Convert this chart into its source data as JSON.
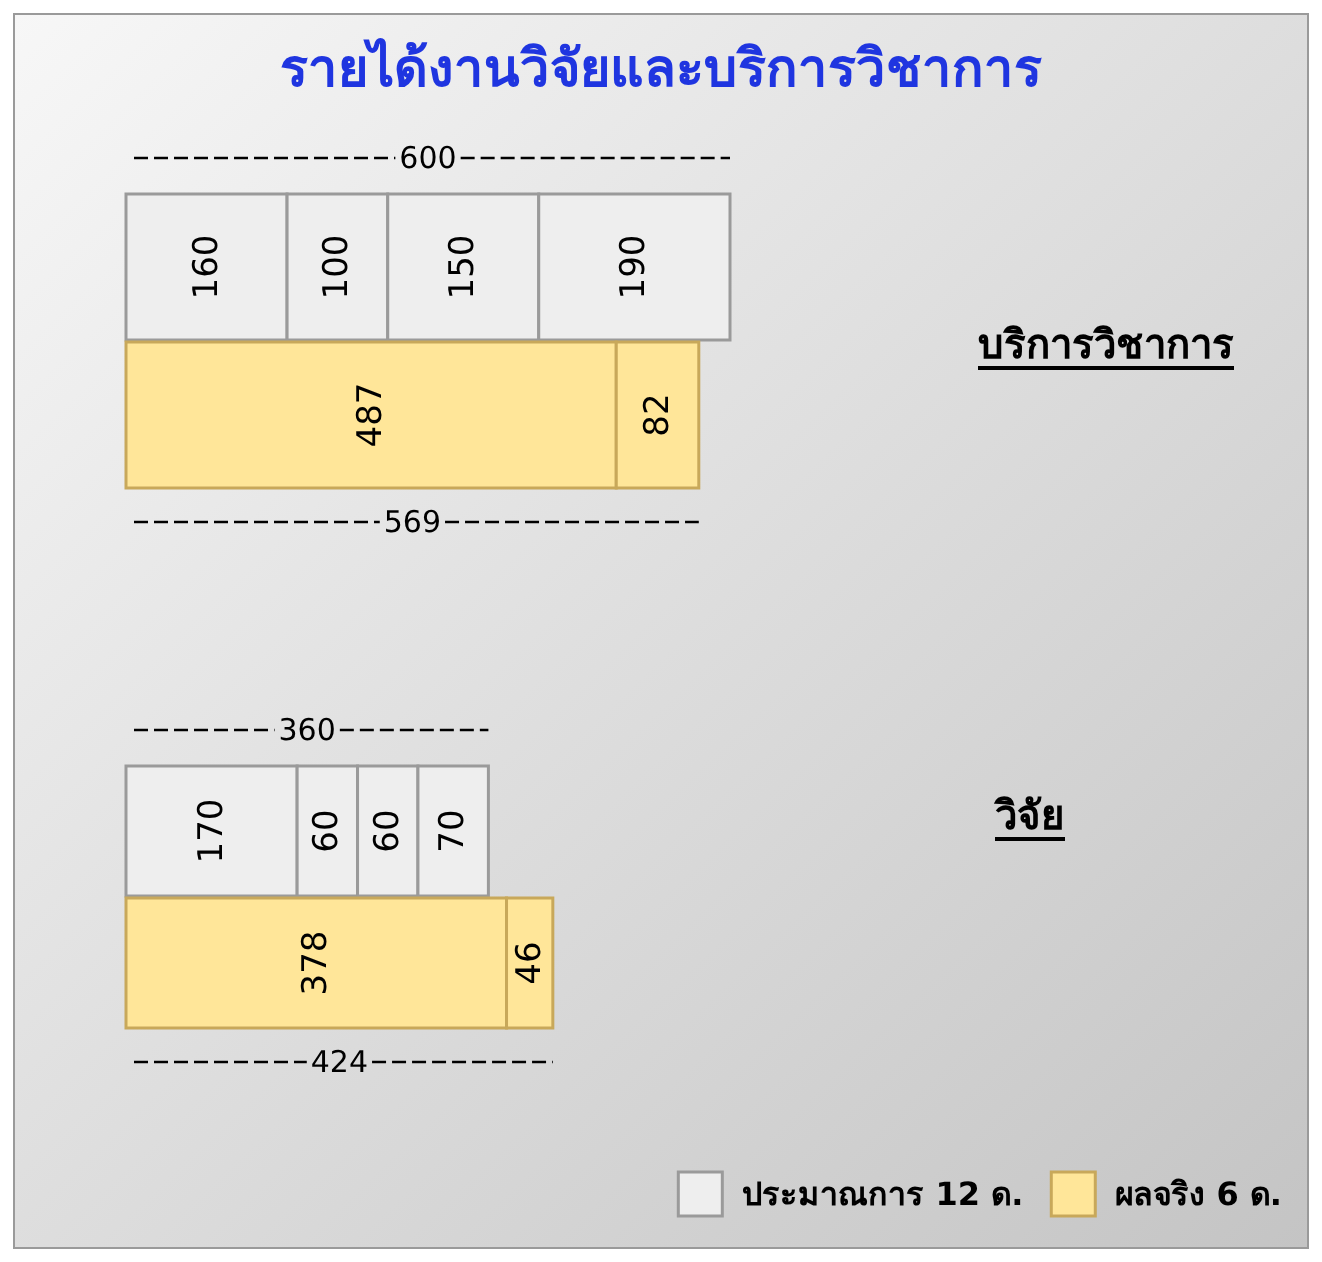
{
  "chart_data": [
    {
      "type": "bar",
      "orientation": "horizontal",
      "stacked": true,
      "title": "รายได้งานวิจัยและบริการวิชาการ",
      "categories": [
        null,
        null
      ],
      "series": [
        {
          "color": "#eeeeee",
          "values": [
            160,
            null
          ]
        },
        {
          "color": "#ffe699",
          "values": [
            null,
            487
          ]
        },
        {
          "color": "#eeeeee",
          "values": [
            100,
            null
          ]
        },
        {
          "color": "#ffe699",
          "values": [
            null,
            82
          ]
        },
        {
          "color": "#eeeeee",
          "values": [
            150,
            null
          ]
        },
        {
          "color": "#eeeeee",
          "values": [
            190,
            null
          ]
        }
      ],
      "data_labels": true,
      "totals": [
        "600",
        "569"
      ],
      "annotations": [
        "บริการวิชาการ"
      ],
      "legend": false
    },
    {
      "type": "bar",
      "orientation": "horizontal",
      "stacked": true,
      "categories": [
        null,
        null
      ],
      "series": [
        {
          "name": "ประมาณการ 12 ด.",
          "color": "#eeeeee",
          "values": [
            170,
            null
          ]
        },
        {
          "name": "ผลจริง 6 ด.",
          "color": "#ffe699",
          "values": [
            null,
            378
          ]
        },
        {
          "color": "#eeeeee",
          "values": [
            60,
            null
          ]
        },
        {
          "color": "#ffe699",
          "values": [
            null,
            46
          ]
        },
        {
          "color": "#eeeeee",
          "values": [
            60,
            null
          ]
        },
        {
          "color": "#eeeeee",
          "values": [
            70,
            null
          ]
        }
      ],
      "data_labels": true,
      "totals": [
        "360",
        "424"
      ],
      "annotations": [
        "วิจัย"
      ],
      "legend": "bottom right"
    }
  ]
}
